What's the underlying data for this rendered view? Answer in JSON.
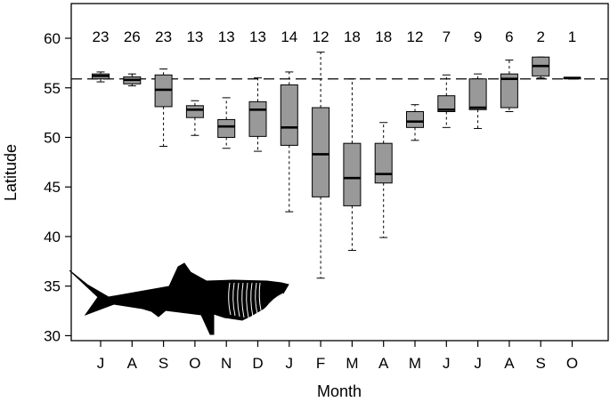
{
  "chart_data": {
    "type": "boxplot",
    "title": "",
    "xlabel": "Month",
    "ylabel": "Latitude",
    "ylim": [
      29.5,
      63.5
    ],
    "yticks": [
      30,
      35,
      40,
      45,
      50,
      55,
      60
    ],
    "reference_line": {
      "y": 55.9,
      "style": "dashed"
    },
    "categories": [
      "J",
      "A",
      "S",
      "O",
      "N",
      "D",
      "J",
      "F",
      "M",
      "A",
      "M",
      "J",
      "J",
      "A",
      "S",
      "O"
    ],
    "counts": [
      "23",
      "26",
      "23",
      "13",
      "13",
      "13",
      "14",
      "12",
      "18",
      "18",
      "12",
      "7",
      "9",
      "6",
      "2",
      "1"
    ],
    "boxes": [
      {
        "whisker_low": 55.6,
        "q1": 55.9,
        "median": 56.2,
        "q3": 56.4,
        "whisker_high": 56.6
      },
      {
        "whisker_low": 55.2,
        "q1": 55.4,
        "median": 55.8,
        "q3": 56.1,
        "whisker_high": 56.4
      },
      {
        "whisker_low": 49.1,
        "q1": 53.1,
        "median": 54.8,
        "q3": 56.3,
        "whisker_high": 56.9
      },
      {
        "whisker_low": 50.2,
        "q1": 52.0,
        "median": 52.8,
        "q3": 53.2,
        "whisker_high": 53.7
      },
      {
        "whisker_low": 48.9,
        "q1": 50.0,
        "median": 51.1,
        "q3": 51.8,
        "whisker_high": 54.0
      },
      {
        "whisker_low": 48.6,
        "q1": 50.1,
        "median": 52.8,
        "q3": 53.6,
        "whisker_high": 56.0
      },
      {
        "whisker_low": 42.5,
        "q1": 49.2,
        "median": 51.0,
        "q3": 55.3,
        "whisker_high": 56.6
      },
      {
        "whisker_low": 35.8,
        "q1": 44.0,
        "median": 48.3,
        "q3": 53.0,
        "whisker_high": 58.6
      },
      {
        "whisker_low": 38.6,
        "q1": 43.1,
        "median": 45.9,
        "q3": 49.4,
        "whisker_high": 55.9
      },
      {
        "whisker_low": 39.9,
        "q1": 45.4,
        "median": 46.3,
        "q3": 49.4,
        "whisker_high": 51.5
      },
      {
        "whisker_low": 49.7,
        "q1": 51.0,
        "median": 51.6,
        "q3": 52.6,
        "whisker_high": 53.3
      },
      {
        "whisker_low": 51.0,
        "q1": 52.6,
        "median": 52.8,
        "q3": 54.2,
        "whisker_high": 56.3
      },
      {
        "whisker_low": 50.9,
        "q1": 52.8,
        "median": 53.0,
        "q3": 55.9,
        "whisker_high": 56.4
      },
      {
        "whisker_low": 52.6,
        "q1": 53.0,
        "median": 55.9,
        "q3": 56.4,
        "whisker_high": 57.8
      },
      {
        "whisker_low": 56.0,
        "q1": 56.2,
        "median": 57.2,
        "q3": 58.1,
        "whisker_high": 58.1
      },
      {
        "whisker_low": 55.9,
        "q1": 55.9,
        "median": 56.0,
        "q3": 56.0,
        "whisker_high": 56.0
      }
    ],
    "box_fill": "#999999",
    "grid": false,
    "illustration": "basking-shark"
  }
}
